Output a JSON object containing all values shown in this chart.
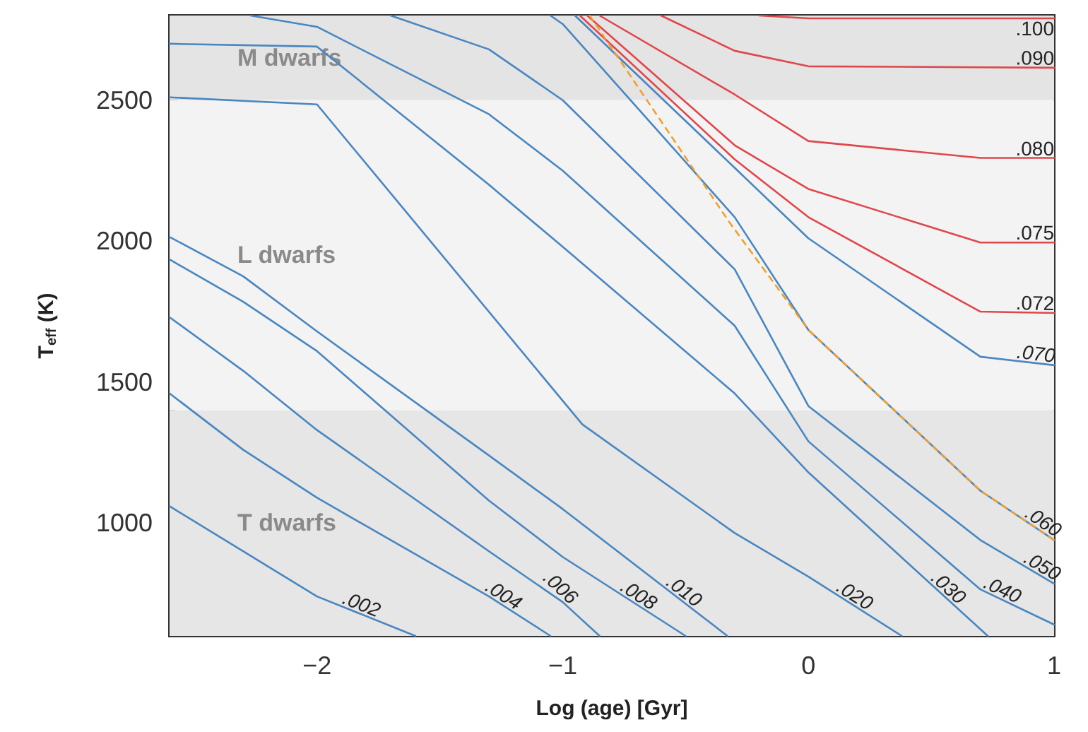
{
  "chart_data": {
    "type": "line",
    "xlabel": "Log (age) [Gyr]",
    "ylabel": "T$_{eff}$ (K)",
    "xlim": [
      -2.6,
      1
    ],
    "ylim": [
      600,
      2800
    ],
    "xticks": [
      -2,
      -1,
      0,
      1
    ],
    "yticks": [
      1000,
      1500,
      2000,
      2500
    ],
    "grid": false,
    "legend": false,
    "marker": "none",
    "line_style": "solid",
    "bands": [
      {
        "axis": "y",
        "from": 2500,
        "to": 2800,
        "label": "M dwarfs",
        "color": "#e4e4e4"
      },
      {
        "axis": "y",
        "from": 1400,
        "to": 2500,
        "label": "L dwarfs",
        "color": "#f3f3f3"
      },
      {
        "axis": "y",
        "from": 600,
        "to": 1400,
        "label": "T dwarfs",
        "color": "#e6e6e6"
      }
    ],
    "series": [
      {
        "name": ".002",
        "color": "#4a86c0",
        "x": [
          -2.6,
          -2,
          -1.6
        ],
        "values": [
          1060,
          740,
          600
        ]
      },
      {
        "name": ".004",
        "color": "#4a86c0",
        "x": [
          -2.6,
          -2.3,
          -2,
          -1.3,
          -1.05
        ],
        "values": [
          1460,
          1260,
          1090,
          740,
          600
        ]
      },
      {
        "name": ".006",
        "color": "#4a86c0",
        "x": [
          -2.6,
          -2.3,
          -2,
          -1.3,
          -1,
          -0.85
        ],
        "values": [
          1730,
          1540,
          1330,
          900,
          720,
          600
        ]
      },
      {
        "name": ".008",
        "color": "#4a86c0",
        "x": [
          -2.6,
          -2.3,
          -2,
          -1.3,
          -1,
          -0.5
        ],
        "values": [
          1935,
          1785,
          1610,
          1080,
          880,
          600
        ]
      },
      {
        "name": ".010",
        "color": "#4a86c0",
        "x": [
          -2.6,
          -2.3,
          -2,
          -1.3,
          -1,
          -0.33
        ],
        "values": [
          2015,
          1875,
          1680,
          1240,
          1050,
          600
        ]
      },
      {
        "name": ".020",
        "color": "#4a86c0",
        "x": [
          -2.6,
          -2,
          -0.92,
          -0.3,
          0,
          0.38
        ],
        "values": [
          2510,
          2485,
          1350,
          965,
          810,
          600
        ]
      },
      {
        "name": ".030",
        "color": "#4a86c0",
        "x": [
          -2.6,
          -2,
          -1.3,
          -1,
          -0.3,
          0,
          0.73
        ],
        "values": [
          2700,
          2690,
          2200,
          1980,
          1460,
          1180,
          600
        ]
      },
      {
        "name": ".040",
        "color": "#4a86c0",
        "x": [
          -2.27,
          -2,
          -1.3,
          -1,
          -0.3,
          0,
          0.7,
          1
        ],
        "values": [
          2800,
          2760,
          2450,
          2250,
          1700,
          1290,
          765,
          640
        ]
      },
      {
        "name": ".050",
        "color": "#4a86c0",
        "x": [
          -1.7,
          -1.3,
          -1,
          -0.3,
          0,
          0.7,
          1
        ],
        "values": [
          2800,
          2680,
          2500,
          1900,
          1415,
          940,
          785
        ]
      },
      {
        "name": ".060",
        "color": "#4a86c0",
        "x": [
          -1.05,
          -1,
          -0.3,
          0,
          0.7,
          1
        ],
        "values": [
          2800,
          2770,
          2085,
          1685,
          1115,
          940
        ]
      },
      {
        "name": ".070",
        "color": "#4a86c0",
        "x": [
          -0.95,
          -0.3,
          0,
          0.7,
          1
        ],
        "values": [
          2800,
          2260,
          2010,
          1590,
          1560
        ]
      },
      {
        "name": ".072",
        "color": "#e0474c",
        "x": [
          -0.93,
          -0.3,
          0,
          0.7,
          1
        ],
        "values": [
          2800,
          2290,
          2085,
          1750,
          1745
        ]
      },
      {
        "name": ".075",
        "color": "#e0474c",
        "x": [
          -0.9,
          -0.3,
          0,
          0.7,
          1
        ],
        "values": [
          2800,
          2340,
          2185,
          1995,
          1995
        ]
      },
      {
        "name": ".080",
        "color": "#e0474c",
        "x": [
          -0.85,
          -0.3,
          0,
          0.7,
          1
        ],
        "values": [
          2800,
          2520,
          2355,
          2295,
          2295
        ]
      },
      {
        "name": ".090",
        "color": "#e0474c",
        "x": [
          -0.6,
          -0.3,
          0,
          1
        ],
        "values": [
          2800,
          2675,
          2620,
          2615
        ]
      },
      {
        "name": ".100",
        "color": "#e0474c",
        "x": [
          -0.2,
          0,
          1
        ],
        "values": [
          2800,
          2790,
          2790
        ]
      },
      {
        "color": "#f0a030",
        "line_style": "dashed",
        "x": [
          -0.89,
          -0.32,
          0,
          0.7,
          1
        ],
        "values": [
          2800,
          2065,
          1685,
          1115,
          940
        ]
      }
    ]
  }
}
